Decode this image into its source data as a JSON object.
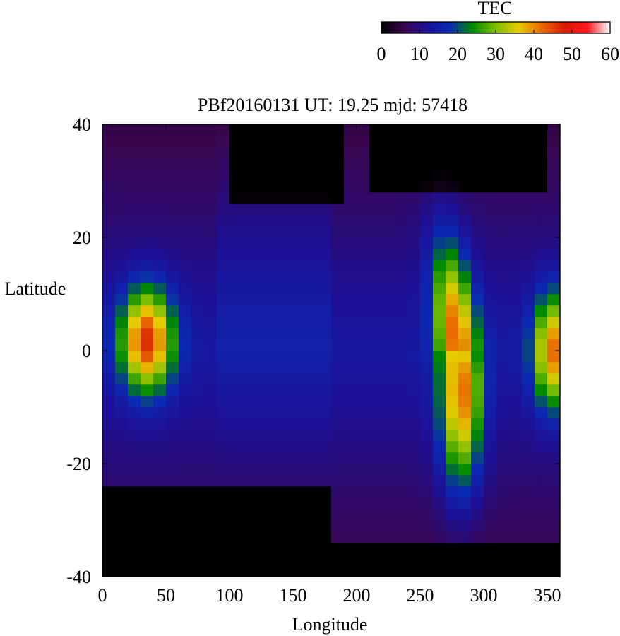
{
  "chart_data": {
    "type": "heatmap",
    "title": "PBf20160131  UT: 19.25  mjd: 57418",
    "xlabel": "Longitude",
    "ylabel": "Latitude",
    "xlim": [
      0,
      360
    ],
    "ylim": [
      -40,
      40
    ],
    "x_ticks": [
      "0",
      "50",
      "100",
      "150",
      "200",
      "250",
      "300",
      "350"
    ],
    "x_tick_values": [
      0,
      50,
      100,
      150,
      200,
      250,
      300,
      350
    ],
    "y_ticks": [
      "40",
      "20",
      "0",
      "-20",
      "-40"
    ],
    "y_tick_values": [
      40,
      20,
      0,
      -20,
      -40
    ],
    "grid": false,
    "cell": {
      "lon_step": 10,
      "lat_step": 2
    },
    "colorbar": {
      "label": "TEC",
      "min": 0,
      "max": 60,
      "ticks": [
        "0",
        "10",
        "20",
        "30",
        "40",
        "50",
        "60"
      ],
      "tick_values": [
        0,
        10,
        20,
        30,
        40,
        50,
        60
      ],
      "placement": "top-right",
      "stops": [
        {
          "v": 0,
          "color": "#000000"
        },
        {
          "v": 6,
          "color": "#3a0650"
        },
        {
          "v": 12,
          "color": "#1d1096"
        },
        {
          "v": 18,
          "color": "#0a2ab4"
        },
        {
          "v": 24,
          "color": "#008a00"
        },
        {
          "v": 30,
          "color": "#7cbe00"
        },
        {
          "v": 36,
          "color": "#e6cc00"
        },
        {
          "v": 42,
          "color": "#e86a00"
        },
        {
          "v": 48,
          "color": "#d71a00"
        },
        {
          "v": 54,
          "color": "#ff1620"
        },
        {
          "v": 60,
          "color": "#ffffff"
        }
      ]
    },
    "regions": [
      {
        "lon": 35,
        "lat": 2,
        "peak": 45,
        "sx": 20,
        "sy": 9,
        "shape": "blob"
      },
      {
        "lon": 282,
        "lat": 0,
        "peak": 42,
        "sx": 16,
        "sy": 10,
        "shape": "trough"
      },
      {
        "lon": 355,
        "lat": 0,
        "peak": 40,
        "sx": 16,
        "sy": 10,
        "shape": "blob"
      }
    ]
  }
}
